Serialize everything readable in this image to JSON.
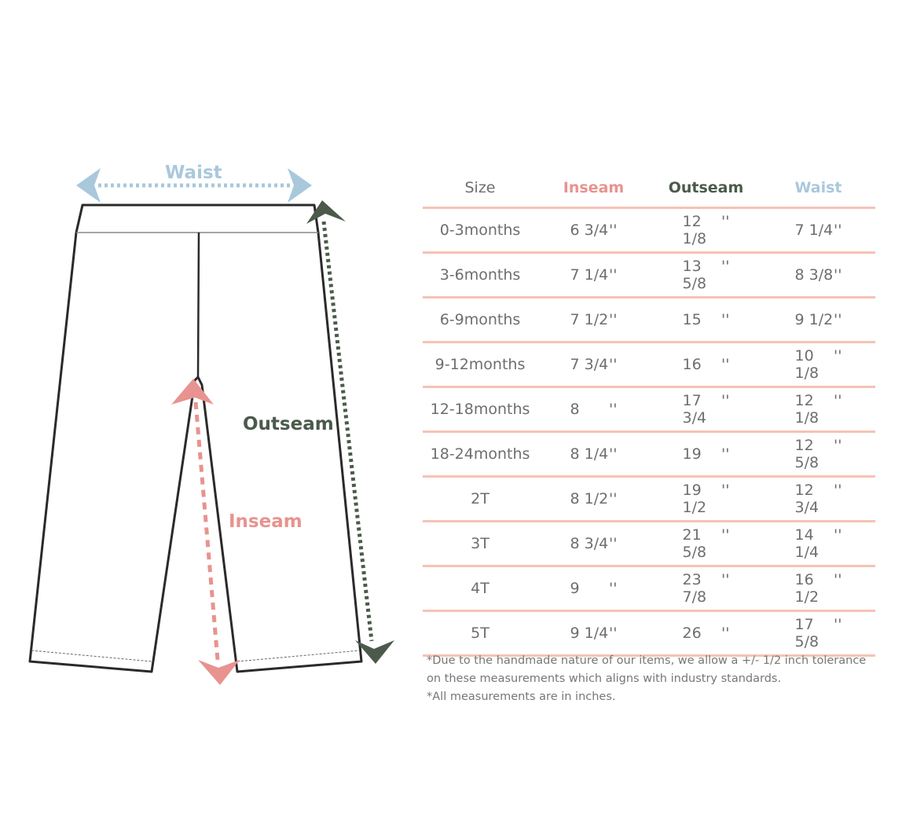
{
  "diagram": {
    "labels": {
      "waist": "Waist",
      "outseam": "Outseam",
      "inseam": "Inseam"
    }
  },
  "colors": {
    "inseam": "#e8938f",
    "outseam": "#4b5a4b",
    "waist": "#a9c8dc",
    "rule": "#f6c2b6"
  },
  "table": {
    "headers": [
      "Size",
      "Inseam",
      "Outseam",
      "Waist"
    ],
    "unit": "''",
    "rows": [
      [
        "0-3months",
        "6 3/4",
        "12 1/8",
        "7 1/4"
      ],
      [
        "3-6months",
        "7 1/4",
        "13 5/8",
        "8 3/8"
      ],
      [
        "6-9months",
        "7 1/2",
        "15",
        "9 1/2"
      ],
      [
        "9-12months",
        "7 3/4",
        "16",
        "10 1/8"
      ],
      [
        "12-18months",
        "8",
        "17 3/4",
        "12 1/8"
      ],
      [
        "18-24months",
        "8 1/4",
        "19",
        "12 5/8"
      ],
      [
        "2T",
        "8 1/2",
        "19 1/2",
        "12 3/4"
      ],
      [
        "3T",
        "8 3/4",
        "21 5/8",
        "14 1/4"
      ],
      [
        "4T",
        "9",
        "23 7/8",
        "16 1/2"
      ],
      [
        "5T",
        "9 1/4",
        "26",
        "17 5/8"
      ]
    ]
  },
  "notes": [
    "*Due to the handmade nature of our items, we allow a +/- 1/2 inch tolerance on these measurements which aligns with industry standards.",
    "*All measurements are in inches."
  ]
}
